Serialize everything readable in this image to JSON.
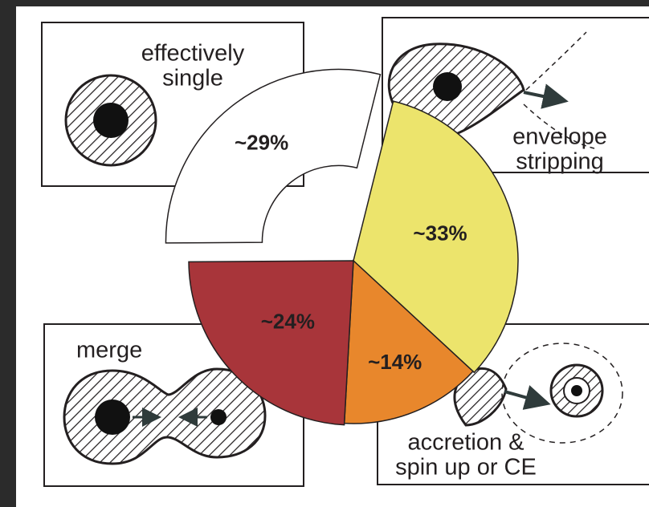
{
  "chart_data": {
    "type": "pie",
    "categories": [
      "envelope stripping",
      "accretion & spin up or CE",
      "merge",
      "effectively single"
    ],
    "values": [
      33,
      14,
      24,
      29
    ],
    "value_labels": [
      "~33%",
      "~14%",
      "~24%",
      "~29%"
    ],
    "colors": [
      "#ece46c",
      "#e8872c",
      "#a8353a",
      "#ffffff"
    ],
    "annotations": [
      {
        "lines": [
          "effectively",
          "single"
        ]
      },
      {
        "lines": [
          "envelope",
          "stripping"
        ]
      },
      {
        "lines": [
          "merge"
        ]
      },
      {
        "lines": [
          "accretion &",
          "spin up or CE"
        ]
      }
    ]
  }
}
